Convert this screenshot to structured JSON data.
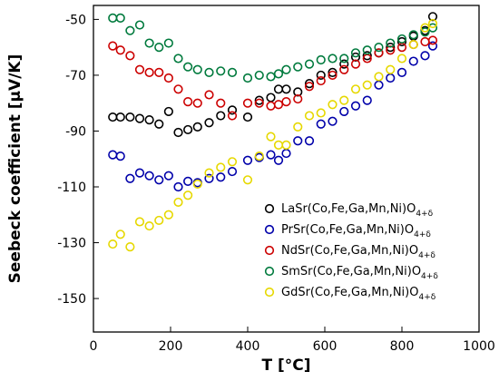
{
  "chart_data": {
    "type": "scatter",
    "xlabel": "T [°C]",
    "ylabel": "Seebeck coefficient [µV/K]",
    "xlim": [
      0,
      1000
    ],
    "ylim": [
      -162,
      -45
    ],
    "xticks": [
      0,
      200,
      400,
      600,
      800,
      1000
    ],
    "yticks": [
      -50,
      -70,
      -90,
      -110,
      -130,
      -150
    ],
    "grid": false,
    "legend_position": "bottom-right",
    "series": [
      {
        "name": "LaSr(Co,Fe,Ga,Mn,Ni)O",
        "name_sub": "4+δ",
        "color": "#000000",
        "x": [
          50,
          70,
          95,
          120,
          145,
          170,
          195,
          220,
          245,
          270,
          300,
          330,
          360,
          400,
          430,
          460,
          480,
          500,
          530,
          560,
          590,
          620,
          650,
          680,
          710,
          740,
          770,
          800,
          830,
          860,
          880
        ],
        "y": [
          -85,
          -85,
          -85,
          -85.5,
          -86,
          -87.5,
          -83,
          -90.5,
          -89.5,
          -88.5,
          -87,
          -84.5,
          -82.5,
          -85,
          -79,
          -78,
          -75,
          -75,
          -76,
          -73,
          -70,
          -69,
          -66,
          -63.5,
          -63,
          -62,
          -60,
          -58,
          -56,
          -54,
          -49
        ]
      },
      {
        "name": "PrSr(Co,Fe,Ga,Mn,Ni)O",
        "name_sub": "4+δ",
        "color": "#0000aa",
        "x": [
          50,
          70,
          95,
          120,
          145,
          170,
          195,
          220,
          245,
          270,
          300,
          330,
          360,
          400,
          430,
          460,
          480,
          500,
          530,
          560,
          590,
          620,
          650,
          680,
          710,
          740,
          770,
          800,
          830,
          860,
          880
        ],
        "y": [
          -98.5,
          -99,
          -107,
          -105,
          -106,
          -107.5,
          -106,
          -110,
          -108,
          -108.5,
          -107,
          -106.5,
          -104.5,
          -100.5,
          -99.5,
          -98.5,
          -100.5,
          -98,
          -93.5,
          -93.5,
          -87.5,
          -86.5,
          -83,
          -81,
          -79,
          -73.5,
          -71,
          -69,
          -65,
          -63,
          -59.5
        ]
      },
      {
        "name": "NdSr(Co,Fe,Ga,Mn,Ni)O",
        "name_sub": "4+δ",
        "color": "#cc0000",
        "x": [
          50,
          70,
          95,
          120,
          145,
          170,
          195,
          220,
          245,
          270,
          300,
          330,
          360,
          400,
          430,
          460,
          480,
          500,
          530,
          560,
          590,
          620,
          650,
          680,
          710,
          740,
          770,
          800,
          830,
          860,
          880
        ],
        "y": [
          -59.5,
          -61,
          -63,
          -68,
          -69,
          -69,
          -71,
          -75,
          -79.5,
          -80,
          -77,
          -80,
          -84.5,
          -80,
          -80,
          -81,
          -80.5,
          -79.5,
          -78.5,
          -74,
          -72,
          -70,
          -68,
          -66,
          -64,
          -62,
          -61,
          -60,
          -59,
          -58,
          -57.5
        ]
      },
      {
        "name": "SmSr(Co,Fe,Ga,Mn,Ni)O",
        "name_sub": "4+δ",
        "color": "#007a3d",
        "x": [
          50,
          70,
          95,
          120,
          145,
          170,
          195,
          220,
          245,
          270,
          300,
          330,
          360,
          400,
          430,
          460,
          480,
          500,
          530,
          560,
          590,
          620,
          650,
          680,
          710,
          740,
          770,
          800,
          830,
          860,
          880
        ],
        "y": [
          -49.5,
          -49.5,
          -54,
          -52,
          -58.5,
          -60,
          -58.5,
          -64,
          -67,
          -68,
          -69,
          -68.5,
          -69,
          -71,
          -70,
          -70.5,
          -69.5,
          -68,
          -67,
          -66,
          -64.5,
          -64,
          -64,
          -62,
          -61,
          -60,
          -58.5,
          -57,
          -55.5,
          -54.5,
          -53
        ]
      },
      {
        "name": "GdSr(Co,Fe,Ga,Mn,Ni)O",
        "name_sub": "4+δ",
        "color": "#e6d800",
        "x": [
          50,
          70,
          95,
          120,
          145,
          170,
          195,
          220,
          245,
          270,
          300,
          330,
          360,
          400,
          430,
          460,
          480,
          500,
          530,
          560,
          590,
          620,
          650,
          680,
          710,
          740,
          770,
          800,
          830,
          860,
          880
        ],
        "y": [
          -130.5,
          -127,
          -131.5,
          -122.5,
          -124,
          -122,
          -120,
          -115.5,
          -113,
          -109,
          -105,
          -103,
          -101,
          -107.5,
          -99,
          -92,
          -95,
          -95,
          -88.5,
          -84.5,
          -83.5,
          -80.5,
          -79,
          -75,
          -73.5,
          -70.5,
          -68,
          -64,
          -59,
          -53,
          -51.5
        ]
      }
    ]
  }
}
